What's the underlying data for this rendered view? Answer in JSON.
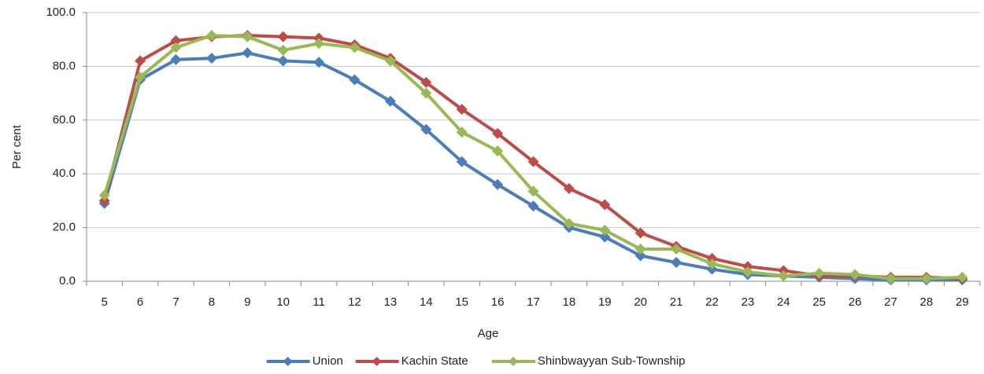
{
  "chart_data": {
    "type": "line",
    "x_label": "Age",
    "y_label": "Per cent",
    "categories": [
      "5",
      "6",
      "7",
      "8",
      "9",
      "10",
      "11",
      "12",
      "13",
      "14",
      "15",
      "16",
      "17",
      "18",
      "19",
      "20",
      "21",
      "22",
      "23",
      "24",
      "25",
      "26",
      "27",
      "28",
      "29"
    ],
    "series": [
      {
        "name": "Union",
        "color": "#4a7ebb",
        "values": [
          29,
          75,
          82.5,
          83,
          85,
          82,
          81.5,
          75,
          67,
          56.5,
          44.5,
          36,
          28,
          20,
          16.5,
          9.5,
          7,
          4.5,
          2.5,
          2,
          1.5,
          1,
          0.5,
          0.5,
          0.5
        ]
      },
      {
        "name": "Kachin State",
        "color": "#be4b48",
        "values": [
          30,
          82,
          89.5,
          91,
          91.5,
          91,
          90.5,
          88,
          83,
          74,
          64,
          55,
          44.5,
          34.5,
          28.5,
          18,
          13,
          8.5,
          5.5,
          4,
          2,
          2,
          1.5,
          1.5,
          1
        ]
      },
      {
        "name": "Shinbwayyan Sub-Township",
        "color": "#98b954",
        "values": [
          32,
          76,
          87,
          91.5,
          91,
          86,
          88.5,
          87,
          82,
          70,
          55.5,
          48.5,
          33.5,
          21.5,
          19,
          12,
          12,
          6.5,
          3.5,
          2,
          3,
          2.5,
          1,
          1,
          1.5
        ]
      }
    ],
    "ylim": [
      0,
      100
    ],
    "yticks": [
      {
        "value": 0,
        "label": "0.0"
      },
      {
        "value": 20,
        "label": "20.0"
      },
      {
        "value": 40,
        "label": "40.0"
      },
      {
        "value": 60,
        "label": "60.0"
      },
      {
        "value": 80,
        "label": "80.0"
      },
      {
        "value": 100,
        "label": "100.0"
      }
    ],
    "grid": true,
    "legend": "bottom"
  }
}
